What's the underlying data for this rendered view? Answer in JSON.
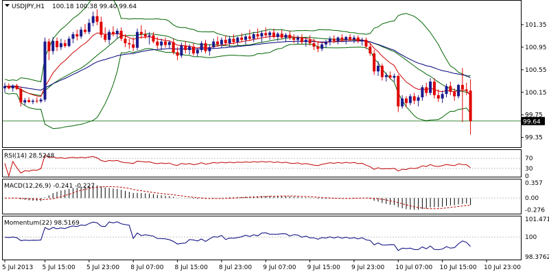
{
  "chart_data": {
    "type": "candlestick",
    "symbol_label": "USDJPY,H1",
    "ohlc_readout": "100.18 100.38 99.40 99.64",
    "last_price_label": "99.64",
    "colors": {
      "bull_body": "#1a1a8c",
      "bear_body": "#e00000",
      "ma_fast": "#d00000",
      "ma_slow": "#00007a",
      "bollinger": "#006400",
      "rsi_line": "#c00000",
      "macd_signal": "#c00000",
      "momentum_line": "#00007a",
      "level_line": "#006400",
      "grid": "#c0c0c0"
    },
    "price_axis": {
      "ylim": [
        99.2,
        101.75
      ],
      "ticks": [
        "101.35",
        "100.95",
        "100.55",
        "100.15",
        "99.75",
        "99.35"
      ],
      "level": 99.64
    },
    "x_axis": {
      "ticks": [
        {
          "label": "5 Jul 2013",
          "index": 0
        },
        {
          "label": "5 Jul 15:00",
          "index": 10
        },
        {
          "label": "5 Jul 23:00",
          "index": 21
        },
        {
          "label": "8 Jul 07:00",
          "index": 32
        },
        {
          "label": "8 Jul 15:00",
          "index": 43
        },
        {
          "label": "8 Jul 23:00",
          "index": 54
        },
        {
          "label": "9 Jul 07:00",
          "index": 65
        },
        {
          "label": "9 Jul 15:00",
          "index": 76
        },
        {
          "label": "9 Jul 23:00",
          "index": 87
        },
        {
          "label": "10 Jul 07:00",
          "index": 98
        },
        {
          "label": "10 Jul 15:00",
          "index": 109
        },
        {
          "label": "10 Jul 23:00",
          "index": 120
        }
      ]
    },
    "candles": [
      {
        "o": 100.22,
        "h": 100.32,
        "l": 100.15,
        "c": 100.26
      },
      {
        "o": 100.26,
        "h": 100.31,
        "l": 100.2,
        "c": 100.22
      },
      {
        "o": 100.22,
        "h": 100.29,
        "l": 100.16,
        "c": 100.27
      },
      {
        "o": 100.27,
        "h": 100.3,
        "l": 100.19,
        "c": 100.21
      },
      {
        "o": 100.21,
        "h": 100.25,
        "l": 99.9,
        "c": 99.97
      },
      {
        "o": 99.97,
        "h": 100.05,
        "l": 99.92,
        "c": 100.01
      },
      {
        "o": 100.01,
        "h": 100.06,
        "l": 99.96,
        "c": 99.98
      },
      {
        "o": 99.98,
        "h": 100.03,
        "l": 99.94,
        "c": 100.0
      },
      {
        "o": 100.0,
        "h": 100.06,
        "l": 99.96,
        "c": 99.99
      },
      {
        "o": 99.99,
        "h": 100.05,
        "l": 99.96,
        "c": 100.02
      },
      {
        "o": 100.02,
        "h": 101.12,
        "l": 99.98,
        "c": 101.05
      },
      {
        "o": 101.05,
        "h": 101.1,
        "l": 100.72,
        "c": 100.88
      },
      {
        "o": 100.88,
        "h": 101.13,
        "l": 100.82,
        "c": 101.06
      },
      {
        "o": 101.06,
        "h": 101.12,
        "l": 100.88,
        "c": 100.95
      },
      {
        "o": 100.95,
        "h": 101.1,
        "l": 100.9,
        "c": 101.02
      },
      {
        "o": 101.02,
        "h": 101.08,
        "l": 100.94,
        "c": 100.97
      },
      {
        "o": 100.97,
        "h": 101.14,
        "l": 100.95,
        "c": 101.1
      },
      {
        "o": 101.1,
        "h": 101.22,
        "l": 101.02,
        "c": 101.18
      },
      {
        "o": 101.18,
        "h": 101.26,
        "l": 101.07,
        "c": 101.14
      },
      {
        "o": 101.14,
        "h": 101.31,
        "l": 101.1,
        "c": 101.26
      },
      {
        "o": 101.26,
        "h": 101.36,
        "l": 101.18,
        "c": 101.22
      },
      {
        "o": 101.22,
        "h": 101.45,
        "l": 101.18,
        "c": 101.38
      },
      {
        "o": 101.38,
        "h": 101.58,
        "l": 101.32,
        "c": 101.5
      },
      {
        "o": 101.5,
        "h": 101.62,
        "l": 101.34,
        "c": 101.4
      },
      {
        "o": 101.4,
        "h": 101.49,
        "l": 101.12,
        "c": 101.17
      },
      {
        "o": 101.17,
        "h": 101.3,
        "l": 101.04,
        "c": 101.08
      },
      {
        "o": 101.08,
        "h": 101.26,
        "l": 101.0,
        "c": 101.22
      },
      {
        "o": 101.22,
        "h": 101.32,
        "l": 101.14,
        "c": 101.18
      },
      {
        "o": 101.18,
        "h": 101.28,
        "l": 101.1,
        "c": 101.24
      },
      {
        "o": 101.24,
        "h": 101.3,
        "l": 101.06,
        "c": 101.1
      },
      {
        "o": 101.1,
        "h": 101.18,
        "l": 100.95,
        "c": 101.02
      },
      {
        "o": 101.02,
        "h": 101.1,
        "l": 100.92,
        "c": 101.0
      },
      {
        "o": 101.0,
        "h": 101.12,
        "l": 100.88,
        "c": 100.94
      },
      {
        "o": 100.94,
        "h": 101.28,
        "l": 100.9,
        "c": 101.22
      },
      {
        "o": 101.22,
        "h": 101.34,
        "l": 101.1,
        "c": 101.18
      },
      {
        "o": 101.18,
        "h": 101.26,
        "l": 101.1,
        "c": 101.14
      },
      {
        "o": 101.14,
        "h": 101.22,
        "l": 101.0,
        "c": 101.16
      },
      {
        "o": 101.16,
        "h": 101.22,
        "l": 101.02,
        "c": 101.05
      },
      {
        "o": 101.05,
        "h": 101.13,
        "l": 100.92,
        "c": 100.98
      },
      {
        "o": 100.98,
        "h": 101.1,
        "l": 100.9,
        "c": 101.05
      },
      {
        "o": 101.05,
        "h": 101.12,
        "l": 100.94,
        "c": 100.99
      },
      {
        "o": 100.99,
        "h": 101.07,
        "l": 100.92,
        "c": 101.04
      },
      {
        "o": 101.04,
        "h": 101.1,
        "l": 100.82,
        "c": 100.86
      },
      {
        "o": 100.86,
        "h": 100.95,
        "l": 100.72,
        "c": 100.8
      },
      {
        "o": 100.8,
        "h": 101.03,
        "l": 100.76,
        "c": 100.98
      },
      {
        "o": 100.98,
        "h": 101.06,
        "l": 100.84,
        "c": 100.9
      },
      {
        "o": 100.9,
        "h": 101.0,
        "l": 100.82,
        "c": 100.96
      },
      {
        "o": 100.96,
        "h": 101.02,
        "l": 100.8,
        "c": 100.84
      },
      {
        "o": 100.84,
        "h": 100.94,
        "l": 100.78,
        "c": 100.9
      },
      {
        "o": 100.9,
        "h": 101.06,
        "l": 100.86,
        "c": 101.02
      },
      {
        "o": 101.02,
        "h": 101.08,
        "l": 100.84,
        "c": 100.88
      },
      {
        "o": 100.88,
        "h": 101.0,
        "l": 100.8,
        "c": 100.95
      },
      {
        "o": 100.95,
        "h": 101.1,
        "l": 100.92,
        "c": 101.05
      },
      {
        "o": 101.05,
        "h": 101.14,
        "l": 100.96,
        "c": 101.0
      },
      {
        "o": 101.0,
        "h": 101.12,
        "l": 100.94,
        "c": 101.08
      },
      {
        "o": 101.08,
        "h": 101.16,
        "l": 100.98,
        "c": 101.02
      },
      {
        "o": 101.02,
        "h": 101.15,
        "l": 100.96,
        "c": 101.1
      },
      {
        "o": 101.1,
        "h": 101.18,
        "l": 101.0,
        "c": 101.04
      },
      {
        "o": 101.04,
        "h": 101.14,
        "l": 100.98,
        "c": 101.12
      },
      {
        "o": 101.12,
        "h": 101.2,
        "l": 101.04,
        "c": 101.08
      },
      {
        "o": 101.08,
        "h": 101.18,
        "l": 101.0,
        "c": 101.14
      },
      {
        "o": 101.14,
        "h": 101.26,
        "l": 101.06,
        "c": 101.1
      },
      {
        "o": 101.1,
        "h": 101.22,
        "l": 101.04,
        "c": 101.18
      },
      {
        "o": 101.18,
        "h": 101.28,
        "l": 101.1,
        "c": 101.14
      },
      {
        "o": 101.14,
        "h": 101.24,
        "l": 101.04,
        "c": 101.2
      },
      {
        "o": 101.2,
        "h": 101.3,
        "l": 101.12,
        "c": 101.16
      },
      {
        "o": 101.16,
        "h": 101.24,
        "l": 101.08,
        "c": 101.21
      },
      {
        "o": 101.21,
        "h": 101.28,
        "l": 101.1,
        "c": 101.13
      },
      {
        "o": 101.13,
        "h": 101.22,
        "l": 101.06,
        "c": 101.19
      },
      {
        "o": 101.19,
        "h": 101.26,
        "l": 101.09,
        "c": 101.12
      },
      {
        "o": 101.12,
        "h": 101.2,
        "l": 101.04,
        "c": 101.17
      },
      {
        "o": 101.17,
        "h": 101.24,
        "l": 101.08,
        "c": 101.11
      },
      {
        "o": 101.11,
        "h": 101.18,
        "l": 101.02,
        "c": 101.08
      },
      {
        "o": 101.08,
        "h": 101.16,
        "l": 101.0,
        "c": 101.12
      },
      {
        "o": 101.12,
        "h": 101.18,
        "l": 101.0,
        "c": 101.04
      },
      {
        "o": 101.04,
        "h": 101.12,
        "l": 100.96,
        "c": 101.08
      },
      {
        "o": 101.08,
        "h": 101.16,
        "l": 100.98,
        "c": 101.02
      },
      {
        "o": 101.02,
        "h": 101.1,
        "l": 100.9,
        "c": 100.96
      },
      {
        "o": 100.96,
        "h": 101.06,
        "l": 100.86,
        "c": 100.92
      },
      {
        "o": 100.92,
        "h": 101.04,
        "l": 100.88,
        "c": 101.0
      },
      {
        "o": 101.0,
        "h": 101.08,
        "l": 100.94,
        "c": 101.04
      },
      {
        "o": 101.04,
        "h": 101.14,
        "l": 100.98,
        "c": 101.1
      },
      {
        "o": 101.1,
        "h": 101.16,
        "l": 101.02,
        "c": 101.06
      },
      {
        "o": 101.06,
        "h": 101.14,
        "l": 101.0,
        "c": 101.12
      },
      {
        "o": 101.12,
        "h": 101.18,
        "l": 101.04,
        "c": 101.08
      },
      {
        "o": 101.08,
        "h": 101.15,
        "l": 101.0,
        "c": 101.13
      },
      {
        "o": 101.13,
        "h": 101.18,
        "l": 101.05,
        "c": 101.09
      },
      {
        "o": 101.09,
        "h": 101.16,
        "l": 101.02,
        "c": 101.12
      },
      {
        "o": 101.12,
        "h": 101.16,
        "l": 101.02,
        "c": 101.06
      },
      {
        "o": 101.06,
        "h": 101.12,
        "l": 100.98,
        "c": 101.08
      },
      {
        "o": 101.08,
        "h": 101.12,
        "l": 100.92,
        "c": 100.96
      },
      {
        "o": 100.96,
        "h": 101.02,
        "l": 100.8,
        "c": 100.84
      },
      {
        "o": 100.84,
        "h": 100.9,
        "l": 100.46,
        "c": 100.52
      },
      {
        "o": 100.52,
        "h": 100.7,
        "l": 100.44,
        "c": 100.62
      },
      {
        "o": 100.62,
        "h": 100.66,
        "l": 100.36,
        "c": 100.42
      },
      {
        "o": 100.42,
        "h": 100.5,
        "l": 100.34,
        "c": 100.45
      },
      {
        "o": 100.45,
        "h": 100.52,
        "l": 100.38,
        "c": 100.41
      },
      {
        "o": 100.41,
        "h": 100.48,
        "l": 100.34,
        "c": 100.44
      },
      {
        "o": 100.44,
        "h": 100.46,
        "l": 99.8,
        "c": 99.9
      },
      {
        "o": 99.9,
        "h": 100.1,
        "l": 99.86,
        "c": 100.04
      },
      {
        "o": 100.04,
        "h": 100.08,
        "l": 99.88,
        "c": 99.96
      },
      {
        "o": 99.96,
        "h": 100.12,
        "l": 99.92,
        "c": 100.08
      },
      {
        "o": 100.08,
        "h": 100.14,
        "l": 99.94,
        "c": 100.0
      },
      {
        "o": 100.0,
        "h": 100.1,
        "l": 99.9,
        "c": 100.06
      },
      {
        "o": 100.06,
        "h": 100.28,
        "l": 100.0,
        "c": 100.24
      },
      {
        "o": 100.24,
        "h": 100.32,
        "l": 100.08,
        "c": 100.14
      },
      {
        "o": 100.14,
        "h": 100.4,
        "l": 100.1,
        "c": 100.34
      },
      {
        "o": 100.34,
        "h": 100.4,
        "l": 100.04,
        "c": 100.1
      },
      {
        "o": 100.1,
        "h": 100.2,
        "l": 99.98,
        "c": 100.04
      },
      {
        "o": 100.04,
        "h": 100.18,
        "l": 99.96,
        "c": 100.12
      },
      {
        "o": 100.12,
        "h": 100.3,
        "l": 100.06,
        "c": 100.26
      },
      {
        "o": 100.26,
        "h": 100.34,
        "l": 100.1,
        "c": 100.16
      },
      {
        "o": 100.16,
        "h": 100.22,
        "l": 100.0,
        "c": 100.08
      },
      {
        "o": 100.08,
        "h": 100.3,
        "l": 100.04,
        "c": 100.28
      },
      {
        "o": 100.28,
        "h": 100.58,
        "l": 99.62,
        "c": 100.2
      },
      {
        "o": 100.2,
        "h": 100.32,
        "l": 100.1,
        "c": 100.18
      },
      {
        "o": 100.18,
        "h": 100.38,
        "l": 99.4,
        "c": 99.64
      }
    ],
    "indicators": {
      "ma_fast": {
        "period": 10
      },
      "ma_slow": {
        "period": 40
      },
      "bollinger": {
        "period": 20,
        "deviations": 2
      }
    },
    "rsi": {
      "label": "RSI(14) 28.5248",
      "ylim": [
        0,
        100
      ],
      "ticks": [
        "70",
        "30",
        "0"
      ]
    },
    "macd": {
      "label": "MACD(12,26,9) -0.241 -0.227",
      "ylim": [
        -0.35,
        0.42
      ],
      "ticks": [
        "0.357",
        "0.00",
        "-0.276"
      ]
    },
    "momentum": {
      "label": "Momentum(22) 98.5169",
      "period": 22,
      "ylim": [
        98.2,
        101.65
      ],
      "ticks": [
        "101.4711",
        "100",
        "98.3762"
      ]
    }
  }
}
